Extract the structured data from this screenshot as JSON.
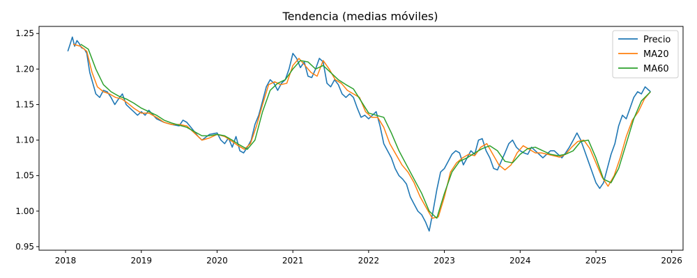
{
  "chart_data": {
    "type": "line",
    "title": "Tendencia (medias móviles)",
    "xlabel": "",
    "ylabel": "",
    "xlim": [
      2017.65,
      2026.15
    ],
    "ylim": [
      0.945,
      1.26
    ],
    "x_ticks": [
      2018,
      2019,
      2020,
      2021,
      2022,
      2023,
      2024,
      2025,
      2026
    ],
    "x_tick_labels": [
      "2018",
      "2019",
      "2020",
      "2021",
      "2022",
      "2023",
      "2024",
      "2025",
      "2026"
    ],
    "y_ticks": [
      0.95,
      1.0,
      1.05,
      1.1,
      1.15,
      1.2,
      1.25
    ],
    "y_tick_labels": [
      "0.95",
      "1.00",
      "1.05",
      "1.10",
      "1.15",
      "1.20",
      "1.25"
    ],
    "grid": false,
    "legend_position": "top-right",
    "series": [
      {
        "name": "Precio",
        "color": "#1f77b4",
        "x": [
          2018.03,
          2018.06,
          2018.09,
          2018.12,
          2018.15,
          2018.18,
          2018.21,
          2018.25,
          2018.28,
          2018.32,
          2018.36,
          2018.4,
          2018.45,
          2018.5,
          2018.55,
          2018.6,
          2018.65,
          2018.7,
          2018.75,
          2018.8,
          2018.85,
          2018.9,
          2018.95,
          2019.0,
          2019.05,
          2019.1,
          2019.2,
          2019.3,
          2019.4,
          2019.5,
          2019.55,
          2019.6,
          2019.7,
          2019.75,
          2019.8,
          2019.9,
          2020.0,
          2020.05,
          2020.1,
          2020.15,
          2020.2,
          2020.25,
          2020.3,
          2020.35,
          2020.4,
          2020.45,
          2020.5,
          2020.55,
          2020.6,
          2020.65,
          2020.7,
          2020.75,
          2020.8,
          2020.85,
          2020.9,
          2020.95,
          2021.0,
          2021.05,
          2021.1,
          2021.15,
          2021.2,
          2021.25,
          2021.3,
          2021.35,
          2021.4,
          2021.45,
          2021.5,
          2021.55,
          2021.6,
          2021.65,
          2021.7,
          2021.75,
          2021.8,
          2021.85,
          2021.9,
          2021.95,
          2022.0,
          2022.05,
          2022.1,
          2022.15,
          2022.2,
          2022.25,
          2022.3,
          2022.35,
          2022.4,
          2022.45,
          2022.5,
          2022.55,
          2022.6,
          2022.65,
          2022.7,
          2022.75,
          2022.8,
          2022.85,
          2022.9,
          2022.95,
          2023.0,
          2023.05,
          2023.1,
          2023.15,
          2023.2,
          2023.25,
          2023.3,
          2023.35,
          2023.4,
          2023.45,
          2023.5,
          2023.55,
          2023.6,
          2023.65,
          2023.7,
          2023.75,
          2023.8,
          2023.85,
          2023.9,
          2023.95,
          2024.0,
          2024.05,
          2024.1,
          2024.15,
          2024.2,
          2024.25,
          2024.3,
          2024.35,
          2024.4,
          2024.45,
          2024.5,
          2024.55,
          2024.6,
          2024.65,
          2024.7,
          2024.75,
          2024.8,
          2024.85,
          2024.9,
          2024.95,
          2025.0,
          2025.05,
          2025.1,
          2025.15,
          2025.2,
          2025.25,
          2025.3,
          2025.35,
          2025.4,
          2025.45,
          2025.5,
          2025.55,
          2025.6,
          2025.65,
          2025.7,
          2025.72
        ],
        "values": [
          1.225,
          1.235,
          1.245,
          1.232,
          1.24,
          1.236,
          1.23,
          1.228,
          1.222,
          1.195,
          1.18,
          1.165,
          1.16,
          1.17,
          1.168,
          1.16,
          1.15,
          1.158,
          1.165,
          1.15,
          1.145,
          1.14,
          1.135,
          1.14,
          1.135,
          1.142,
          1.13,
          1.125,
          1.122,
          1.12,
          1.128,
          1.125,
          1.112,
          1.105,
          1.1,
          1.108,
          1.11,
          1.1,
          1.095,
          1.103,
          1.09,
          1.105,
          1.085,
          1.082,
          1.09,
          1.1,
          1.122,
          1.135,
          1.155,
          1.175,
          1.185,
          1.18,
          1.17,
          1.18,
          1.185,
          1.2,
          1.222,
          1.215,
          1.202,
          1.21,
          1.19,
          1.188,
          1.2,
          1.215,
          1.21,
          1.18,
          1.175,
          1.185,
          1.178,
          1.165,
          1.16,
          1.165,
          1.16,
          1.145,
          1.132,
          1.135,
          1.13,
          1.135,
          1.14,
          1.12,
          1.095,
          1.085,
          1.075,
          1.06,
          1.05,
          1.045,
          1.038,
          1.02,
          1.01,
          1.0,
          0.995,
          0.985,
          0.972,
          1.0,
          1.03,
          1.055,
          1.06,
          1.07,
          1.08,
          1.085,
          1.082,
          1.065,
          1.075,
          1.085,
          1.08,
          1.1,
          1.102,
          1.085,
          1.075,
          1.06,
          1.058,
          1.07,
          1.082,
          1.095,
          1.1,
          1.09,
          1.085,
          1.082,
          1.08,
          1.09,
          1.085,
          1.08,
          1.075,
          1.08,
          1.085,
          1.085,
          1.08,
          1.075,
          1.082,
          1.09,
          1.1,
          1.11,
          1.1,
          1.085,
          1.07,
          1.055,
          1.04,
          1.032,
          1.04,
          1.06,
          1.08,
          1.095,
          1.12,
          1.135,
          1.13,
          1.145,
          1.16,
          1.168,
          1.165,
          1.175,
          1.17,
          1.168
        ]
      },
      {
        "name": "MA20",
        "color": "#ff7f0e",
        "x": [
          2018.1,
          2018.2,
          2018.28,
          2018.35,
          2018.42,
          2018.5,
          2018.58,
          2018.66,
          2018.74,
          2018.82,
          2018.9,
          2019.0,
          2019.1,
          2019.2,
          2019.3,
          2019.4,
          2019.5,
          2019.6,
          2019.7,
          2019.8,
          2019.9,
          2020.0,
          2020.1,
          2020.2,
          2020.28,
          2020.36,
          2020.44,
          2020.52,
          2020.6,
          2020.68,
          2020.76,
          2020.84,
          2020.92,
          2021.0,
          2021.08,
          2021.16,
          2021.24,
          2021.32,
          2021.4,
          2021.48,
          2021.56,
          2021.64,
          2021.72,
          2021.8,
          2021.88,
          2021.96,
          2022.04,
          2022.12,
          2022.2,
          2022.28,
          2022.36,
          2022.44,
          2022.52,
          2022.6,
          2022.68,
          2022.76,
          2022.84,
          2022.92,
          2023.0,
          2023.08,
          2023.16,
          2023.24,
          2023.32,
          2023.4,
          2023.48,
          2023.56,
          2023.64,
          2023.72,
          2023.8,
          2023.88,
          2023.96,
          2024.04,
          2024.12,
          2024.2,
          2024.28,
          2024.36,
          2024.44,
          2024.52,
          2024.6,
          2024.68,
          2024.76,
          2024.84,
          2024.92,
          2025.0,
          2025.08,
          2025.16,
          2025.24,
          2025.32,
          2025.4,
          2025.48,
          2025.56,
          2025.64,
          2025.72
        ],
        "values": [
          1.235,
          1.232,
          1.225,
          1.195,
          1.175,
          1.168,
          1.165,
          1.16,
          1.158,
          1.152,
          1.145,
          1.138,
          1.138,
          1.132,
          1.125,
          1.122,
          1.122,
          1.12,
          1.11,
          1.1,
          1.103,
          1.108,
          1.105,
          1.098,
          1.092,
          1.087,
          1.095,
          1.12,
          1.15,
          1.178,
          1.182,
          1.178,
          1.18,
          1.205,
          1.215,
          1.205,
          1.195,
          1.19,
          1.212,
          1.2,
          1.185,
          1.18,
          1.17,
          1.165,
          1.16,
          1.14,
          1.132,
          1.132,
          1.118,
          1.095,
          1.08,
          1.065,
          1.055,
          1.04,
          1.02,
          1.005,
          0.99,
          0.992,
          1.02,
          1.055,
          1.068,
          1.075,
          1.08,
          1.078,
          1.09,
          1.095,
          1.08,
          1.065,
          1.058,
          1.065,
          1.082,
          1.092,
          1.087,
          1.082,
          1.082,
          1.08,
          1.078,
          1.076,
          1.08,
          1.09,
          1.098,
          1.1,
          1.088,
          1.068,
          1.048,
          1.035,
          1.05,
          1.075,
          1.105,
          1.128,
          1.14,
          1.158,
          1.168
        ]
      },
      {
        "name": "MA60",
        "color": "#2ca02c",
        "x": [
          2018.2,
          2018.3,
          2018.4,
          2018.5,
          2018.6,
          2018.7,
          2018.8,
          2018.9,
          2019.0,
          2019.1,
          2019.2,
          2019.3,
          2019.4,
          2019.5,
          2019.6,
          2019.7,
          2019.8,
          2019.9,
          2020.0,
          2020.1,
          2020.2,
          2020.3,
          2020.4,
          2020.5,
          2020.6,
          2020.7,
          2020.8,
          2020.9,
          2021.0,
          2021.1,
          2021.2,
          2021.3,
          2021.4,
          2021.5,
          2021.6,
          2021.7,
          2021.8,
          2021.9,
          2022.0,
          2022.1,
          2022.2,
          2022.3,
          2022.4,
          2022.5,
          2022.6,
          2022.7,
          2022.8,
          2022.9,
          2023.0,
          2023.1,
          2023.2,
          2023.3,
          2023.4,
          2023.5,
          2023.6,
          2023.7,
          2023.8,
          2023.9,
          2024.0,
          2024.1,
          2024.2,
          2024.3,
          2024.4,
          2024.5,
          2024.6,
          2024.7,
          2024.8,
          2024.9,
          2025.0,
          2025.1,
          2025.2,
          2025.3,
          2025.4,
          2025.5,
          2025.6,
          2025.72
        ],
        "values": [
          1.235,
          1.228,
          1.2,
          1.178,
          1.168,
          1.162,
          1.158,
          1.152,
          1.145,
          1.14,
          1.135,
          1.128,
          1.124,
          1.121,
          1.118,
          1.112,
          1.106,
          1.106,
          1.108,
          1.106,
          1.1,
          1.093,
          1.087,
          1.1,
          1.14,
          1.17,
          1.18,
          1.185,
          1.2,
          1.212,
          1.21,
          1.2,
          1.205,
          1.195,
          1.185,
          1.178,
          1.172,
          1.155,
          1.138,
          1.135,
          1.132,
          1.11,
          1.085,
          1.065,
          1.045,
          1.025,
          1.0,
          0.99,
          1.025,
          1.055,
          1.07,
          1.075,
          1.082,
          1.088,
          1.092,
          1.085,
          1.07,
          1.068,
          1.08,
          1.088,
          1.09,
          1.085,
          1.08,
          1.078,
          1.08,
          1.085,
          1.098,
          1.1,
          1.075,
          1.045,
          1.04,
          1.06,
          1.095,
          1.13,
          1.155,
          1.168
        ]
      }
    ]
  }
}
